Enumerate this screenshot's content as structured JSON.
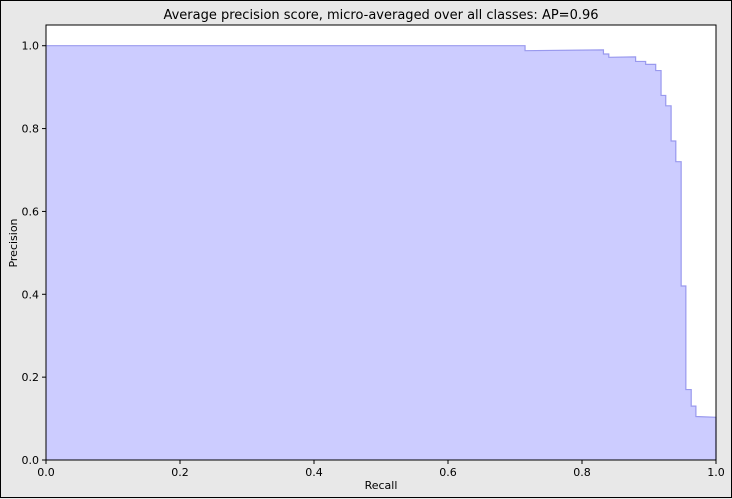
{
  "chart_data": {
    "type": "area",
    "title": "Average precision score, micro-averaged over all classes: AP=0.96",
    "xlabel": "Recall",
    "ylabel": "Precision",
    "xlim": [
      0.0,
      1.0
    ],
    "ylim": [
      0.0,
      1.05
    ],
    "xticks": [
      "0.0",
      "0.2",
      "0.4",
      "0.6",
      "0.8",
      "1.0"
    ],
    "yticks": [
      "0.0",
      "0.2",
      "0.4",
      "0.6",
      "0.8",
      "1.0"
    ],
    "grid": false,
    "step": "post",
    "fill_color": "#ccccff",
    "line_color": "#9999ee",
    "points": [
      {
        "recall": 0.0,
        "precision": 1.0
      },
      {
        "recall": 0.715,
        "precision": 1.0
      },
      {
        "recall": 0.715,
        "precision": 0.988
      },
      {
        "recall": 0.832,
        "precision": 0.99
      },
      {
        "recall": 0.832,
        "precision": 0.98
      },
      {
        "recall": 0.84,
        "precision": 0.98
      },
      {
        "recall": 0.84,
        "precision": 0.972
      },
      {
        "recall": 0.88,
        "precision": 0.973
      },
      {
        "recall": 0.88,
        "precision": 0.962
      },
      {
        "recall": 0.895,
        "precision": 0.962
      },
      {
        "recall": 0.895,
        "precision": 0.955
      },
      {
        "recall": 0.91,
        "precision": 0.955
      },
      {
        "recall": 0.91,
        "precision": 0.94
      },
      {
        "recall": 0.918,
        "precision": 0.94
      },
      {
        "recall": 0.918,
        "precision": 0.88
      },
      {
        "recall": 0.925,
        "precision": 0.88
      },
      {
        "recall": 0.925,
        "precision": 0.855
      },
      {
        "recall": 0.933,
        "precision": 0.855
      },
      {
        "recall": 0.933,
        "precision": 0.77
      },
      {
        "recall": 0.94,
        "precision": 0.77
      },
      {
        "recall": 0.94,
        "precision": 0.72
      },
      {
        "recall": 0.948,
        "precision": 0.72
      },
      {
        "recall": 0.948,
        "precision": 0.42
      },
      {
        "recall": 0.955,
        "precision": 0.42
      },
      {
        "recall": 0.955,
        "precision": 0.17
      },
      {
        "recall": 0.963,
        "precision": 0.17
      },
      {
        "recall": 0.963,
        "precision": 0.13
      },
      {
        "recall": 0.97,
        "precision": 0.13
      },
      {
        "recall": 0.97,
        "precision": 0.105
      },
      {
        "recall": 1.0,
        "precision": 0.103
      },
      {
        "recall": 1.0,
        "precision": 0.0
      }
    ]
  }
}
